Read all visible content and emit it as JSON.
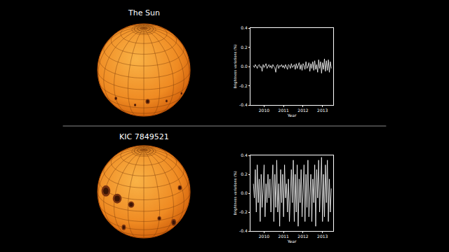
{
  "chart_data": [
    {
      "type": "line",
      "title": "The Sun",
      "x_label": "Year",
      "y_label": "Brightness variations (%)",
      "color": "#ffffff",
      "grid": false,
      "xlim": [
        2009.3,
        2013.55
      ],
      "ylim": [
        -0.4,
        0.4
      ],
      "xticks": [
        2010,
        2011,
        2012,
        2013
      ],
      "yticks": [
        -0.4,
        -0.2,
        {
          "value": 0,
          "label": "0.0"
        },
        0.2,
        0.4
      ],
      "x": [
        2009.45,
        2009.5,
        2009.55,
        2009.6,
        2009.65,
        2009.7,
        2009.75,
        2009.8,
        2009.85,
        2009.9,
        2009.95,
        2010.0,
        2010.05,
        2010.1,
        2010.15,
        2010.2,
        2010.25,
        2010.3,
        2010.35,
        2010.4,
        2010.45,
        2010.5,
        2010.55,
        2010.6,
        2010.65,
        2010.7,
        2010.75,
        2010.8,
        2010.85,
        2010.9,
        2010.95,
        2011.0,
        2011.05,
        2011.1,
        2011.15,
        2011.2,
        2011.25,
        2011.3,
        2011.35,
        2011.4,
        2011.45,
        2011.5,
        2011.55,
        2011.6,
        2011.65,
        2011.7,
        2011.75,
        2011.8,
        2011.85,
        2011.9,
        2011.95,
        2012.0,
        2012.05,
        2012.1,
        2012.15,
        2012.2,
        2012.25,
        2012.3,
        2012.35,
        2012.4,
        2012.45,
        2012.5,
        2012.55,
        2012.6,
        2012.65,
        2012.7,
        2012.75,
        2012.8,
        2012.85,
        2012.9,
        2012.95,
        2013.0,
        2013.05,
        2013.1,
        2013.15,
        2013.2,
        2013.25,
        2013.3,
        2013.35,
        2013.4,
        2013.45
      ],
      "values": [
        0.01,
        -0.01,
        0.02,
        0.0,
        -0.02,
        0.01,
        0.02,
        -0.01,
        0.0,
        -0.05,
        0.02,
        -0.01,
        0.01,
        0.03,
        -0.02,
        0.0,
        0.02,
        -0.01,
        0.01,
        -0.02,
        0.02,
        0.0,
        -0.01,
        -0.06,
        0.01,
        0.02,
        -0.02,
        0.01,
        0.0,
        0.02,
        -0.01,
        0.01,
        -0.02,
        0.02,
        0.0,
        -0.03,
        0.02,
        0.01,
        -0.02,
        0.03,
        -0.01,
        0.0,
        0.02,
        -0.03,
        0.03,
        -0.02,
        0.01,
        0.04,
        -0.03,
        0.02,
        -0.04,
        0.03,
        0.01,
        -0.03,
        0.05,
        -0.02,
        0.0,
        0.04,
        -0.05,
        0.03,
        -0.02,
        0.05,
        -0.04,
        0.06,
        -0.03,
        0.02,
        -0.06,
        0.07,
        -0.02,
        0.05,
        -0.07,
        0.04,
        -0.03,
        0.08,
        -0.05,
        0.06,
        -0.04,
        0.07,
        -0.06,
        0.05,
        -0.02
      ]
    },
    {
      "type": "line",
      "title": "KIC 7849521",
      "x_label": "Year",
      "y_label": "Brightness variations (%)",
      "color": "#ffffff",
      "grid": false,
      "xlim": [
        2009.3,
        2013.55
      ],
      "ylim": [
        -0.4,
        0.4
      ],
      "xticks": [
        2010,
        2011,
        2012,
        2013
      ],
      "yticks": [
        -0.4,
        -0.2,
        {
          "value": 0,
          "label": "0.0"
        },
        0.2,
        0.4
      ],
      "x": [
        2009.45,
        2009.5,
        2009.55,
        2009.6,
        2009.65,
        2009.7,
        2009.75,
        2009.8,
        2009.85,
        2009.9,
        2009.95,
        2010.0,
        2010.05,
        2010.1,
        2010.15,
        2010.2,
        2010.25,
        2010.3,
        2010.35,
        2010.4,
        2010.45,
        2010.5,
        2010.55,
        2010.6,
        2010.65,
        2010.7,
        2010.75,
        2010.8,
        2010.85,
        2010.9,
        2010.95,
        2011.0,
        2011.05,
        2011.1,
        2011.15,
        2011.2,
        2011.25,
        2011.3,
        2011.35,
        2011.4,
        2011.45,
        2011.5,
        2011.55,
        2011.6,
        2011.65,
        2011.7,
        2011.75,
        2011.8,
        2011.85,
        2011.9,
        2011.95,
        2012.0,
        2012.05,
        2012.1,
        2012.15,
        2012.2,
        2012.25,
        2012.3,
        2012.35,
        2012.4,
        2012.45,
        2012.5,
        2012.55,
        2012.6,
        2012.65,
        2012.7,
        2012.75,
        2012.8,
        2012.85,
        2012.9,
        2012.95,
        2013.0,
        2013.05,
        2013.1,
        2013.15,
        2013.2,
        2013.25,
        2013.3,
        2013.35,
        2013.4,
        2013.45
      ],
      "values": [
        0.1,
        -0.05,
        0.25,
        -0.2,
        0.3,
        -0.1,
        0.15,
        -0.3,
        0.2,
        -0.15,
        0.05,
        0.3,
        -0.25,
        0.1,
        -0.1,
        0.2,
        -0.05,
        0.15,
        -0.2,
        0.05,
        0.3,
        -0.3,
        0.2,
        -0.15,
        0.35,
        -0.2,
        0.1,
        -0.35,
        0.25,
        -0.1,
        0.2,
        -0.25,
        0.3,
        -0.05,
        0.1,
        -0.2,
        0.15,
        -0.3,
        0.05,
        0.25,
        -0.1,
        0.35,
        -0.3,
        0.2,
        -0.2,
        0.3,
        -0.35,
        0.15,
        -0.1,
        0.25,
        -0.25,
        0.1,
        0.3,
        -0.3,
        0.2,
        -0.15,
        0.35,
        -0.25,
        0.05,
        0.2,
        -0.3,
        0.15,
        -0.1,
        0.3,
        -0.35,
        0.25,
        -0.05,
        0.35,
        -0.2,
        0.1,
        0.38,
        -0.3,
        0.2,
        -0.25,
        0.3,
        -0.1,
        0.35,
        -0.3,
        0.15,
        -0.2,
        0.05
      ]
    }
  ]
}
